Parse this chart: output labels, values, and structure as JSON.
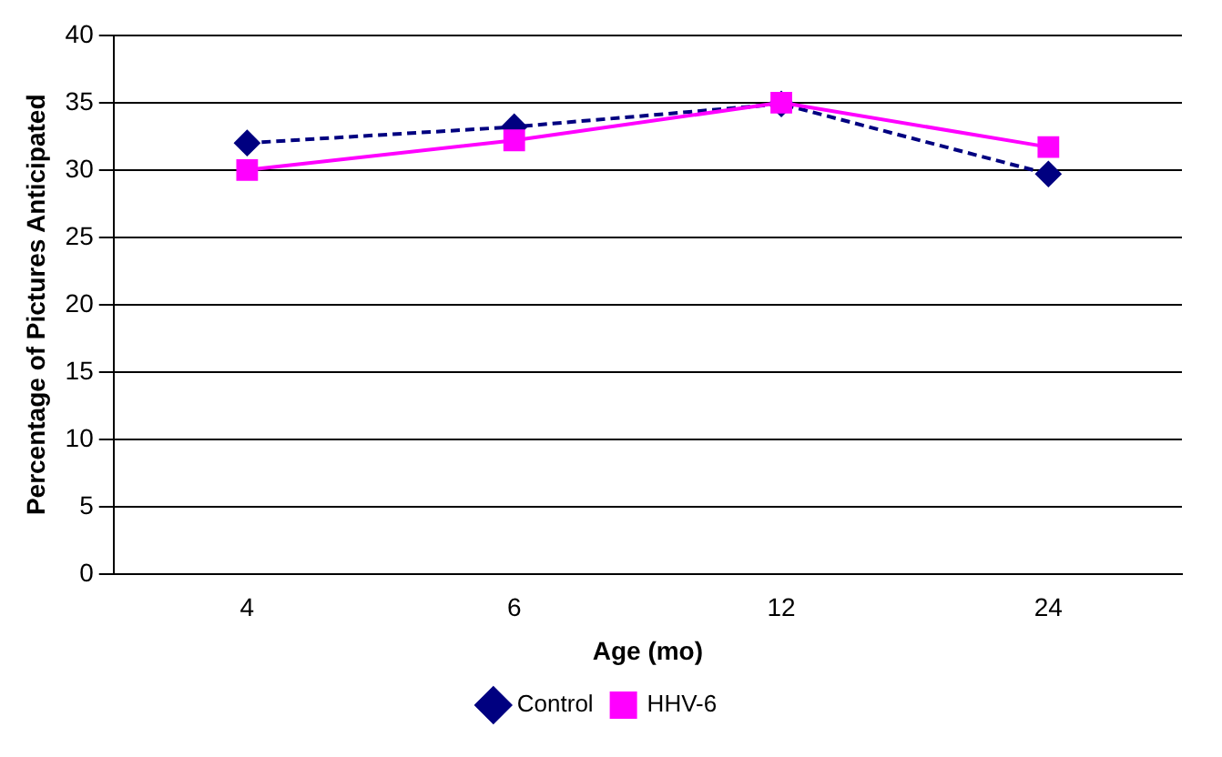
{
  "chart_data": {
    "type": "line",
    "xlabel": "Age (mo)",
    "ylabel": "Percentage of Pictures Anticipated",
    "categories": [
      "4",
      "6",
      "12",
      "24"
    ],
    "series": [
      {
        "name": "Control",
        "color": "#000080",
        "values": [
          32.0,
          33.2,
          34.9,
          29.7
        ],
        "marker": "diamond",
        "line_style": "dashed"
      },
      {
        "name": "HHV-6",
        "color": "#ff00ff",
        "values": [
          30.0,
          32.2,
          35.0,
          31.7
        ],
        "marker": "square",
        "line_style": "solid"
      }
    ],
    "ylim": [
      0,
      40
    ],
    "yticks": [
      0,
      5,
      10,
      15,
      20,
      25,
      30,
      35,
      40
    ],
    "grid": "y",
    "legend": "bottom"
  }
}
